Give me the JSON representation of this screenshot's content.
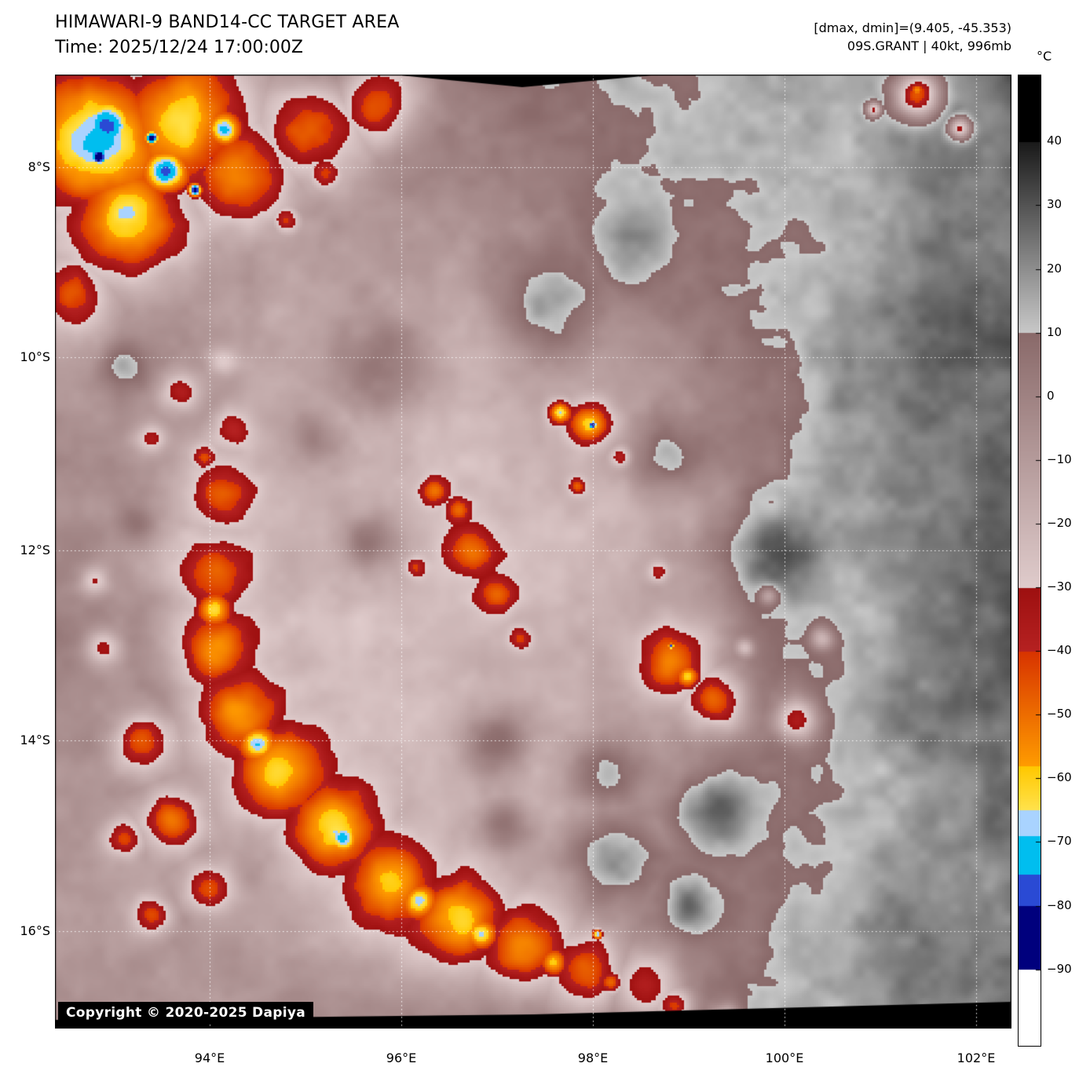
{
  "header": {
    "title": "HIMAWARI-9 BAND14-CC TARGET AREA",
    "time_line": "Time: 2025/12/24 17:00:00Z",
    "range_line": "[dmax, dmin]=(9.405, -45.353)",
    "storm_line": "09S.GRANT | 40kt, 996mb"
  },
  "meta": {
    "satellite": "HIMAWARI-9",
    "band": "BAND14-CC",
    "product": "TARGET AREA",
    "time_utc": "2025/12/24 17:00:00Z",
    "dmax": 9.405,
    "dmin": -45.353,
    "storm_id": "09S.GRANT",
    "intensity": "40kt",
    "pressure": "996mb"
  },
  "axes": {
    "x_labels": [
      "94°E",
      "96°E",
      "98°E",
      "100°E",
      "102°E"
    ],
    "y_labels": [
      "8°S",
      "10°S",
      "12°S",
      "14°S",
      "16°S"
    ]
  },
  "colorbar": {
    "unit": "°C",
    "domain": [
      50.4,
      -102
    ],
    "tick_values": [
      40,
      30,
      20,
      10,
      0,
      -10,
      -20,
      -30,
      -40,
      -50,
      -60,
      -70,
      -80,
      -90
    ],
    "tick_labels": [
      "40",
      "30",
      "20",
      "10",
      "0",
      "−10",
      "−20",
      "−30",
      "−40",
      "−50",
      "−60",
      "−70",
      "−80",
      "−90"
    ],
    "segments": [
      {
        "from": 50.4,
        "to": 40,
        "top": "#000000",
        "bottom": "#000000"
      },
      {
        "from": 40,
        "to": 10,
        "top": "#1a1a1a",
        "bottom": "#c9c9c9"
      },
      {
        "from": 10,
        "to": -30,
        "top": "#8a6a6a",
        "bottom": "#e0cccc"
      },
      {
        "from": -30,
        "to": -40,
        "top": "#9e1010",
        "bottom": "#b62222"
      },
      {
        "from": -40,
        "to": -58,
        "top": "#d83400",
        "bottom": "#ff9c00"
      },
      {
        "from": -58,
        "to": -65,
        "top": "#ffc800",
        "bottom": "#ffe34d"
      },
      {
        "from": -65,
        "to": -69,
        "top": "#a9d3ff",
        "bottom": "#a9d3ff"
      },
      {
        "from": -69,
        "to": -75,
        "top": "#00beef",
        "bottom": "#00beef"
      },
      {
        "from": -75,
        "to": -80,
        "top": "#2a4ad4",
        "bottom": "#2a4ad4"
      },
      {
        "from": -80,
        "to": -90,
        "top": "#00007d",
        "bottom": "#00007d"
      },
      {
        "from": -90,
        "to": -102,
        "top": "#ffffff",
        "bottom": "#ffffff"
      }
    ]
  },
  "map": {
    "copyright": "Copyright © 2020-2025 Dapiya"
  }
}
